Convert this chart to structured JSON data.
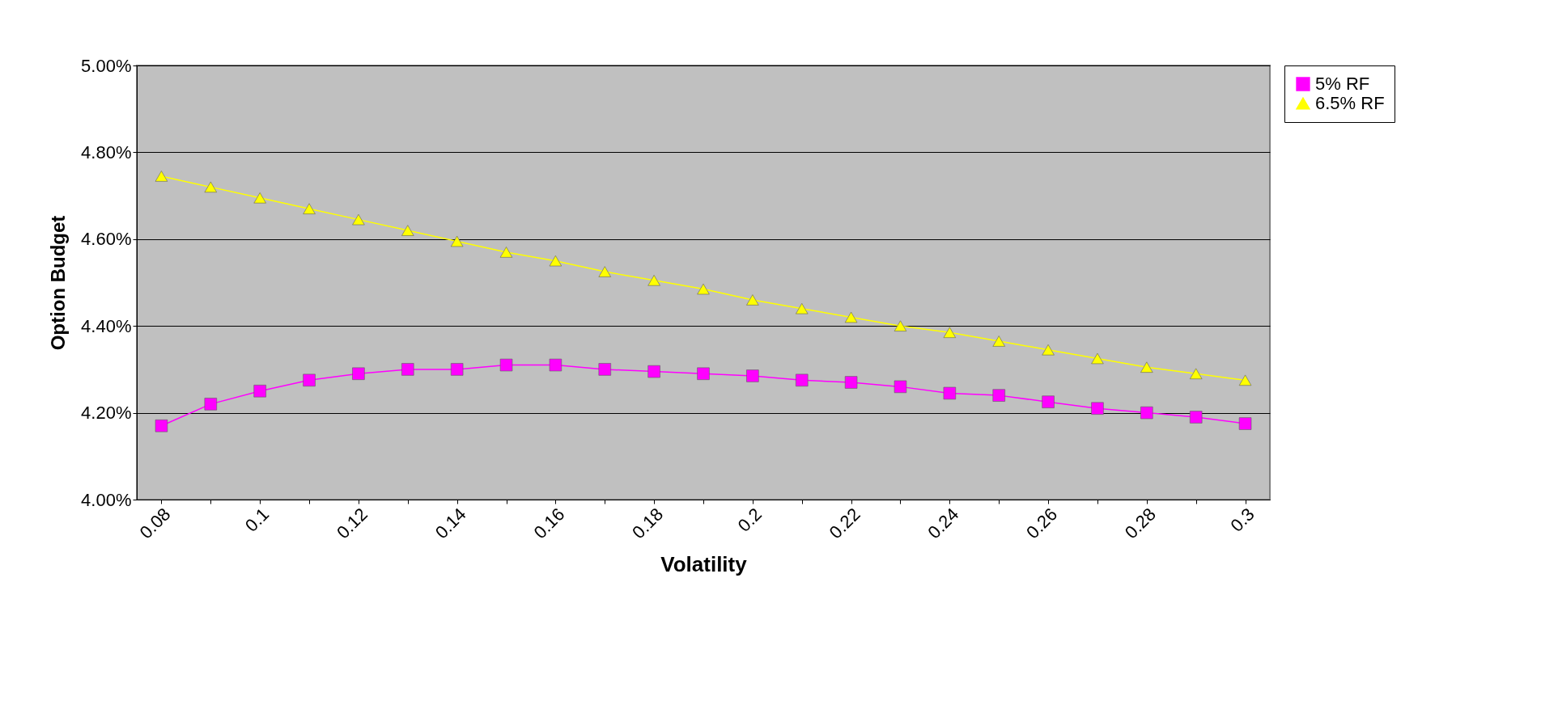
{
  "chart_data": {
    "type": "line",
    "xlabel": "Volatility",
    "ylabel": "Option Budget",
    "categories": [
      "0.08",
      null,
      "0.1",
      null,
      "0.12",
      null,
      "0.14",
      null,
      "0.16",
      null,
      "0.18",
      null,
      "0.2",
      null,
      "0.22",
      null,
      "0.24",
      null,
      "0.26",
      null,
      "0.28",
      null,
      "0.3"
    ],
    "series": [
      {
        "name": "5% RF",
        "color": "#ff00ff",
        "marker": "square",
        "values": [
          4.17,
          4.22,
          4.25,
          4.275,
          4.29,
          4.3,
          4.3,
          4.31,
          4.31,
          4.3,
          4.295,
          4.29,
          4.285,
          4.275,
          4.27,
          4.26,
          4.245,
          4.24,
          4.225,
          4.21,
          4.2,
          4.19,
          4.175
        ]
      },
      {
        "name": "6.5% RF",
        "color": "#ffff00",
        "marker": "triangle",
        "values": [
          4.745,
          4.72,
          4.695,
          4.67,
          4.645,
          4.62,
          4.595,
          4.57,
          4.55,
          4.525,
          4.505,
          4.485,
          4.46,
          4.44,
          4.42,
          4.4,
          4.385,
          4.365,
          4.345,
          4.325,
          4.305,
          4.29,
          4.275
        ]
      }
    ],
    "ylim": [
      4.0,
      5.0
    ],
    "yticks": [
      {
        "value": 4.0,
        "label": "4.00%"
      },
      {
        "value": 4.2,
        "label": "4.20%"
      },
      {
        "value": 4.4,
        "label": "4.40%"
      },
      {
        "value": 4.6,
        "label": "4.60%"
      },
      {
        "value": 4.8,
        "label": "4.80%"
      },
      {
        "value": 5.0,
        "label": "5.00%"
      }
    ],
    "grid": "y",
    "legend": "right",
    "line_style": "solid"
  }
}
